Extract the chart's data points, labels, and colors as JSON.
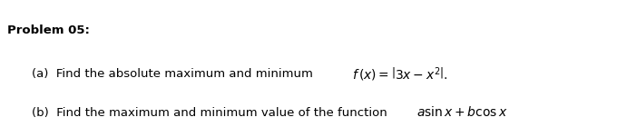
{
  "title": "Problem 05:",
  "background_color": "#ffffff",
  "text_color": "#000000",
  "title_fontsize": 9.5,
  "body_fontsize": 9.5,
  "fig_width": 6.91,
  "fig_height": 1.51,
  "dpi": 100
}
